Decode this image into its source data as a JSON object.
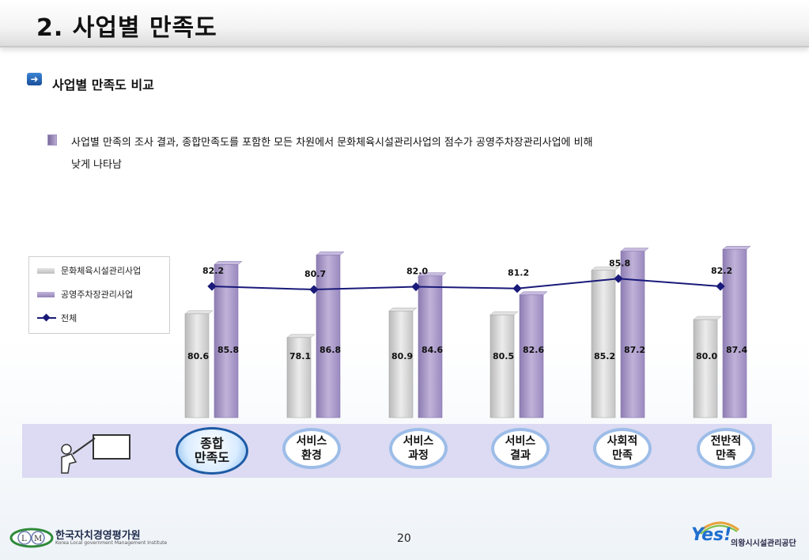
{
  "header": {
    "title": "2. 사업별 만족도"
  },
  "section": {
    "subtitle": "사업별 만족도 비교",
    "paragraph_line1": "사업별 만족의 조사 결과, 종합만족도를 포함한 모든 차원에서 문화체육시설관리사업의 점수가 공영주차장관리사업에 비해",
    "paragraph_line2": "낮게 나타남"
  },
  "chart_data": {
    "type": "bar",
    "categories": [
      "종합\n만족도",
      "서비스\n환경",
      "서비스\n과정",
      "서비스\n결과",
      "사회적\n만족",
      "전반적\n만족"
    ],
    "category_labels": [
      [
        "종합",
        "만족도"
      ],
      [
        "서비스",
        "환경"
      ],
      [
        "서비스",
        "과정"
      ],
      [
        "서비스",
        "결과"
      ],
      [
        "사회적",
        "만족"
      ],
      [
        "전반적",
        "만족"
      ]
    ],
    "series": [
      {
        "name": "문화체육시설관리사업",
        "type": "bar",
        "color": "#cfcfcf",
        "values": [
          80.6,
          78.1,
          80.9,
          80.5,
          85.2,
          80.0
        ]
      },
      {
        "name": "공영주차장관리사업",
        "type": "bar",
        "color": "#a897c6",
        "values": [
          85.8,
          86.8,
          84.6,
          82.6,
          87.2,
          87.4
        ]
      },
      {
        "name": "전체",
        "type": "line",
        "color": "#1a1a7a",
        "values": [
          82.2,
          80.7,
          82.0,
          81.2,
          85.8,
          82.2
        ]
      }
    ],
    "legend": {
      "position": "top-left",
      "items": [
        "문화체육시설관리사업",
        "공영주차장관리사업",
        "전체"
      ]
    },
    "grid": false
  },
  "footer": {
    "org_left": "한국자치경영평가원",
    "org_left_en": "Korea Local government Management Institute",
    "page_number": "20",
    "logo_right_mark": "Yes!",
    "org_right": "의왕시시설관리공단"
  },
  "colors": {
    "accent_blue": "#1d5aa5",
    "band": "#dcdbf3"
  }
}
